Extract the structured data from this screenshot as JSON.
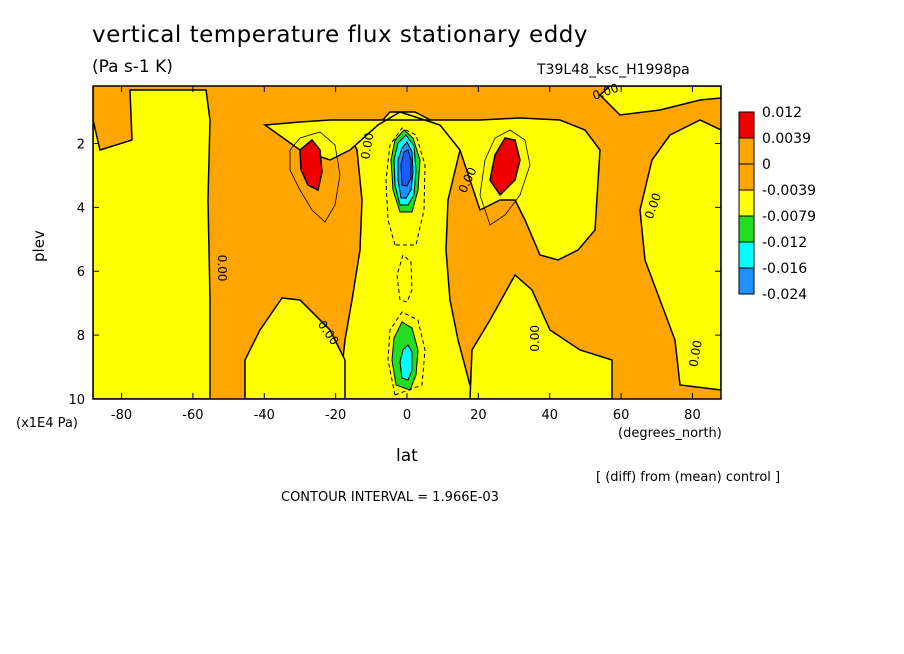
{
  "title": "vertical temperature flux stationary eddy",
  "units": "(Pa s-1 K)",
  "run_id": "T39L48_ksc_H1998pa",
  "diff_note": "[ (diff) from (mean) control ]",
  "contour_interval": "CONTOUR INTERVAL = 1.966E-03",
  "colors": {
    "red": "#ee0000",
    "orange": "#ffa500",
    "yellow": "#ffff00",
    "green": "#22dd22",
    "cyan": "#00ffff",
    "lightblue": "#1e90ff",
    "blue": "#1a5cff"
  },
  "chart_data": {
    "type": "heatmap",
    "title": "vertical temperature flux stationary eddy",
    "xlabel": "lat",
    "xlabel_units": "(degrees_north)",
    "ylabel": "plev",
    "ylabel_units": "(x1E4 Pa)",
    "xlim": [
      -88,
      88
    ],
    "ylim": [
      10,
      0.2
    ],
    "x_ticks": [
      -80,
      -60,
      -40,
      -20,
      0,
      20,
      40,
      60,
      80
    ],
    "y_ticks": [
      2,
      4,
      6,
      8,
      10
    ],
    "legend": {
      "placement": "right",
      "levels": [
        "0.012",
        "0.0039",
        "0",
        "-0.0039",
        "-0.0079",
        "-0.012",
        "-0.016",
        "-0.024"
      ],
      "colors": [
        "#ee0000",
        "#ffa500",
        "#ffa500",
        "#ffff00",
        "#22dd22",
        "#00ffff",
        "#1e90ff",
        "#1a5cff"
      ]
    },
    "contour_labels": [
      {
        "text": "0.00",
        "lat": -53,
        "plev": 5.9,
        "rot": 90
      },
      {
        "text": "0.00",
        "lat": -23,
        "plev": 8.0,
        "rot": 55
      },
      {
        "text": "0.00",
        "lat": -10,
        "plev": 2.1,
        "rot": -80
      },
      {
        "text": "0.00",
        "lat": 18,
        "plev": 3.2,
        "rot": -65
      },
      {
        "text": "0.00",
        "lat": 37,
        "plev": 8.1,
        "rot": -90
      },
      {
        "text": "0.00",
        "lat": 70,
        "plev": 4.0,
        "rot": -70
      },
      {
        "text": "0.00",
        "lat": 82,
        "plev": 8.6,
        "rot": -80
      },
      {
        "text": "0.00",
        "lat": 56,
        "plev": 0.5,
        "rot": -20
      }
    ],
    "regions": [
      {
        "level": "0.0039",
        "color": "#ffa500",
        "lat": -88,
        "plev_range": [
          0.2,
          10
        ],
        "note": "orange background"
      },
      {
        "level": "-0.0039",
        "color": "#ffff00",
        "lat": -75,
        "plev_range": [
          0.4,
          10
        ],
        "note": "yellow band south polar"
      },
      {
        "level": "0.012",
        "color": "#ee0000",
        "lat": -27,
        "plev_range": [
          1.9,
          3.5
        ]
      },
      {
        "level": "0.012",
        "color": "#ee0000",
        "lat": 28,
        "plev_range": [
          1.8,
          3.6
        ]
      },
      {
        "level": "-0.024",
        "color": "#1a5cff",
        "lat": 0,
        "plev_range": [
          1.6,
          3.2
        ]
      },
      {
        "level": "-0.0079",
        "color": "#22dd22",
        "lat": 0,
        "plev_range": [
          7.8,
          9.5
        ]
      }
    ]
  }
}
